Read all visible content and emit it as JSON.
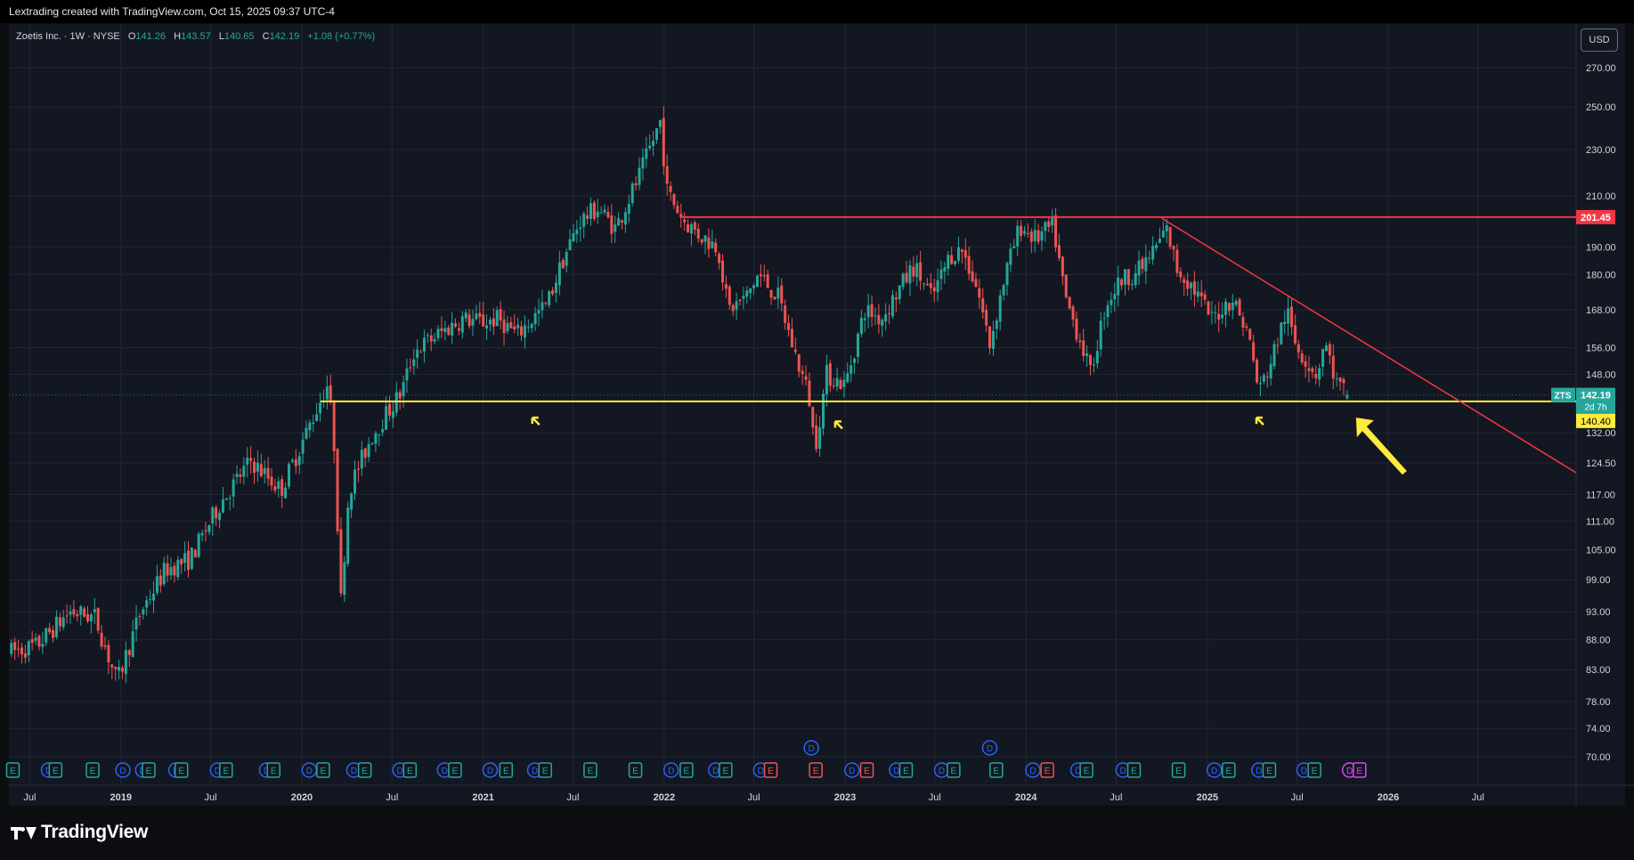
{
  "header": {
    "attribution": "Lextrading created with TradingView.com, Oct 15, 2025 09:37 UTC-4"
  },
  "legend": {
    "symbol": "Zoetis Inc. · 1W · NYSE",
    "open_label": "O",
    "open": "141.26",
    "high_label": "H",
    "high": "143.57",
    "low_label": "L",
    "low": "140.65",
    "close_label": "C",
    "close": "142.19",
    "change": "+1.08 (+0.77%)"
  },
  "currency_button": "USD",
  "branding": {
    "logo_text": "TradingView"
  },
  "colors": {
    "background": "#131722",
    "grid": "#232735",
    "up": "#26a69a",
    "down": "#ef5350",
    "resistance": "#f23645",
    "support": "#ffeb3b",
    "axis_text": "#d1d4dc"
  },
  "chart_data": {
    "type": "candlestick",
    "symbol": "ZTS",
    "interval": "1W",
    "price_scale": {
      "type": "log",
      "ylim": [
        67,
        290
      ],
      "ticks": [
        70,
        74,
        78,
        83,
        88,
        93,
        99,
        105,
        111,
        117,
        124.5,
        132,
        148,
        156,
        168,
        180,
        190,
        210,
        230,
        250,
        270
      ],
      "tick_labels": [
        "70.00",
        "74.00",
        "78.00",
        "83.00",
        "88.00",
        "93.00",
        "99.00",
        "105.00",
        "111.00",
        "117.00",
        "124.50",
        "132.00",
        "148.00",
        "156.00",
        "168.00",
        "180.00",
        "190.00",
        "210.00",
        "230.00",
        "250.00",
        "270.00"
      ]
    },
    "time_scale": {
      "xlim": [
        "2018-05-20",
        "2027-01-15"
      ],
      "ticks": [
        {
          "date": "2018-07-01",
          "label": "Jul",
          "bold": false
        },
        {
          "date": "2019-01-01",
          "label": "2019",
          "bold": true
        },
        {
          "date": "2019-07-01",
          "label": "Jul",
          "bold": false
        },
        {
          "date": "2020-01-01",
          "label": "2020",
          "bold": true
        },
        {
          "date": "2020-07-01",
          "label": "Jul",
          "bold": false
        },
        {
          "date": "2021-01-01",
          "label": "2021",
          "bold": true
        },
        {
          "date": "2021-07-01",
          "label": "Jul",
          "bold": false
        },
        {
          "date": "2022-01-01",
          "label": "2022",
          "bold": true
        },
        {
          "date": "2022-07-01",
          "label": "Jul",
          "bold": false
        },
        {
          "date": "2023-01-01",
          "label": "2023",
          "bold": true
        },
        {
          "date": "2023-07-01",
          "label": "Jul",
          "bold": false
        },
        {
          "date": "2024-01-01",
          "label": "2024",
          "bold": true
        },
        {
          "date": "2024-07-01",
          "label": "Jul",
          "bold": false
        },
        {
          "date": "2025-01-01",
          "label": "2025",
          "bold": true
        },
        {
          "date": "2025-07-01",
          "label": "Jul",
          "bold": false
        },
        {
          "date": "2026-01-01",
          "label": "2026",
          "bold": true
        },
        {
          "date": "2026-07-01",
          "label": "Jul",
          "bold": false
        }
      ]
    },
    "price_path": [
      [
        "2018-05-25",
        86
      ],
      [
        "2018-07-15",
        87
      ],
      [
        "2018-09-20",
        93
      ],
      [
        "2018-11-10",
        92
      ],
      [
        "2018-12-24",
        81
      ],
      [
        "2019-02-10",
        93
      ],
      [
        "2019-04-01",
        101
      ],
      [
        "2019-05-20",
        103
      ],
      [
        "2019-07-20",
        115
      ],
      [
        "2019-09-20",
        125
      ],
      [
        "2019-11-20",
        118
      ],
      [
        "2020-01-20",
        135
      ],
      [
        "2020-02-21",
        145
      ],
      [
        "2020-03-05",
        132
      ],
      [
        "2020-03-20",
        95
      ],
      [
        "2020-04-05",
        118
      ],
      [
        "2020-05-20",
        131
      ],
      [
        "2020-06-20",
        137
      ],
      [
        "2020-07-20",
        143
      ],
      [
        "2020-08-15",
        155
      ],
      [
        "2020-10-01",
        160
      ],
      [
        "2020-11-20",
        165
      ],
      [
        "2021-01-01",
        164
      ],
      [
        "2021-02-01",
        165
      ],
      [
        "2021-03-10",
        160
      ],
      [
        "2021-04-10",
        165
      ],
      [
        "2021-05-10",
        170
      ],
      [
        "2021-06-10",
        185
      ],
      [
        "2021-07-15",
        200
      ],
      [
        "2021-08-20",
        205
      ],
      [
        "2021-09-25",
        197
      ],
      [
        "2021-11-15",
        220
      ],
      [
        "2021-12-24",
        243
      ],
      [
        "2022-01-07",
        212
      ],
      [
        "2022-02-10",
        200
      ],
      [
        "2022-03-10",
        195
      ],
      [
        "2022-04-20",
        190
      ],
      [
        "2022-05-10",
        168
      ],
      [
        "2022-06-15",
        172
      ],
      [
        "2022-07-10",
        180
      ],
      [
        "2022-08-20",
        172
      ],
      [
        "2022-09-20",
        155
      ],
      [
        "2022-10-20",
        142
      ],
      [
        "2022-11-01",
        128
      ],
      [
        "2022-11-25",
        148
      ],
      [
        "2023-01-01",
        145
      ],
      [
        "2023-02-10",
        168
      ],
      [
        "2023-03-15",
        165
      ],
      [
        "2023-04-20",
        175
      ],
      [
        "2023-05-20",
        183
      ],
      [
        "2023-06-25",
        172
      ],
      [
        "2023-08-01",
        187
      ],
      [
        "2023-08-25",
        189
      ],
      [
        "2023-09-25",
        175
      ],
      [
        "2023-10-20",
        157
      ],
      [
        "2023-11-20",
        180
      ],
      [
        "2023-12-20",
        198
      ],
      [
        "2024-01-20",
        193
      ],
      [
        "2024-02-25",
        198
      ],
      [
        "2024-03-20",
        172
      ],
      [
        "2024-04-25",
        156
      ],
      [
        "2024-05-10",
        148
      ],
      [
        "2024-06-10",
        170
      ],
      [
        "2024-07-10",
        178
      ],
      [
        "2024-08-20",
        182
      ],
      [
        "2024-09-20",
        190
      ],
      [
        "2024-10-10",
        197
      ],
      [
        "2024-11-01",
        182
      ],
      [
        "2024-12-01",
        176
      ],
      [
        "2025-01-10",
        165
      ],
      [
        "2025-02-20",
        172
      ],
      [
        "2025-03-25",
        160
      ],
      [
        "2025-04-15",
        143
      ],
      [
        "2025-05-10",
        152
      ],
      [
        "2025-06-10",
        168
      ],
      [
        "2025-06-25",
        158
      ],
      [
        "2025-07-20",
        152
      ],
      [
        "2025-08-10",
        148
      ],
      [
        "2025-08-25",
        158
      ],
      [
        "2025-09-20",
        145
      ],
      [
        "2025-10-15",
        142.19
      ]
    ],
    "support_line": {
      "price": 140.4,
      "label": "140.40",
      "color": "#ffeb3b"
    },
    "resistance_line": {
      "price": 201.45,
      "label": "201.45",
      "color": "#f23645",
      "start": "2022-02-05"
    },
    "trendline": {
      "points": [
        [
          "2024-10-01",
          201
        ],
        [
          "2025-06-29",
          171
        ]
      ],
      "color": "#f23645"
    },
    "last_price": {
      "label": "ZTS",
      "price": "142.19",
      "countdown": "2d 7h",
      "color": "#26a69a"
    },
    "arrows": [
      {
        "date": "2021-04-10",
        "price": 136
      },
      {
        "date": "2022-12-12",
        "price": 135
      },
      {
        "date": "2025-04-10",
        "price": 136
      },
      {
        "date": "2025-10-28",
        "price": 136,
        "big": true
      }
    ],
    "events": [
      {
        "date": "2018-05-28",
        "kind": "E"
      },
      {
        "date": "2018-08-08",
        "kind": "D"
      },
      {
        "date": "2018-08-22",
        "kind": "E"
      },
      {
        "date": "2018-11-05",
        "kind": "E"
      },
      {
        "date": "2019-01-05",
        "kind": "D"
      },
      {
        "date": "2019-02-14",
        "kind": "D"
      },
      {
        "date": "2019-02-26",
        "kind": "E"
      },
      {
        "date": "2019-04-22",
        "kind": "D"
      },
      {
        "date": "2019-05-03",
        "kind": "E"
      },
      {
        "date": "2019-07-15",
        "kind": "D"
      },
      {
        "date": "2019-08-01",
        "kind": "E"
      },
      {
        "date": "2019-10-22",
        "kind": "D"
      },
      {
        "date": "2019-11-05",
        "kind": "E"
      },
      {
        "date": "2020-01-16",
        "kind": "D"
      },
      {
        "date": "2020-02-13",
        "kind": "E"
      },
      {
        "date": "2020-04-15",
        "kind": "D"
      },
      {
        "date": "2020-05-07",
        "kind": "E"
      },
      {
        "date": "2020-07-17",
        "kind": "D"
      },
      {
        "date": "2020-08-06",
        "kind": "E"
      },
      {
        "date": "2020-10-15",
        "kind": "D"
      },
      {
        "date": "2020-11-05",
        "kind": "E"
      },
      {
        "date": "2021-01-15",
        "kind": "D"
      },
      {
        "date": "2021-02-16",
        "kind": "E"
      },
      {
        "date": "2021-04-15",
        "kind": "D"
      },
      {
        "date": "2021-05-06",
        "kind": "E"
      },
      {
        "date": "2021-08-05",
        "kind": "E"
      },
      {
        "date": "2021-11-04",
        "kind": "E"
      },
      {
        "date": "2022-01-15",
        "kind": "D"
      },
      {
        "date": "2022-02-15",
        "kind": "E"
      },
      {
        "date": "2022-04-15",
        "kind": "D"
      },
      {
        "date": "2022-05-05",
        "kind": "E"
      },
      {
        "date": "2022-07-15",
        "kind": "D"
      },
      {
        "date": "2022-08-04",
        "kind": "E-red"
      },
      {
        "date": "2022-10-25",
        "kind": "D",
        "row": "upper"
      },
      {
        "date": "2022-11-03",
        "kind": "E-red"
      },
      {
        "date": "2023-01-15",
        "kind": "D"
      },
      {
        "date": "2023-02-14",
        "kind": "E-red"
      },
      {
        "date": "2023-04-15",
        "kind": "D"
      },
      {
        "date": "2023-05-04",
        "kind": "E"
      },
      {
        "date": "2023-07-15",
        "kind": "D"
      },
      {
        "date": "2023-08-08",
        "kind": "E"
      },
      {
        "date": "2023-10-20",
        "kind": "D",
        "row": "upper"
      },
      {
        "date": "2023-11-02",
        "kind": "E"
      },
      {
        "date": "2024-01-15",
        "kind": "D"
      },
      {
        "date": "2024-02-13",
        "kind": "E-red"
      },
      {
        "date": "2024-04-15",
        "kind": "D"
      },
      {
        "date": "2024-05-02",
        "kind": "E"
      },
      {
        "date": "2024-07-15",
        "kind": "D"
      },
      {
        "date": "2024-08-06",
        "kind": "E"
      },
      {
        "date": "2024-11-04",
        "kind": "E"
      },
      {
        "date": "2025-01-15",
        "kind": "D"
      },
      {
        "date": "2025-02-13",
        "kind": "E"
      },
      {
        "date": "2025-04-15",
        "kind": "D"
      },
      {
        "date": "2025-05-06",
        "kind": "E"
      },
      {
        "date": "2025-07-15",
        "kind": "D"
      },
      {
        "date": "2025-08-05",
        "kind": "E"
      },
      {
        "date": "2025-10-15",
        "kind": "D-purple"
      },
      {
        "date": "2025-11-04",
        "kind": "E-purple"
      }
    ]
  }
}
